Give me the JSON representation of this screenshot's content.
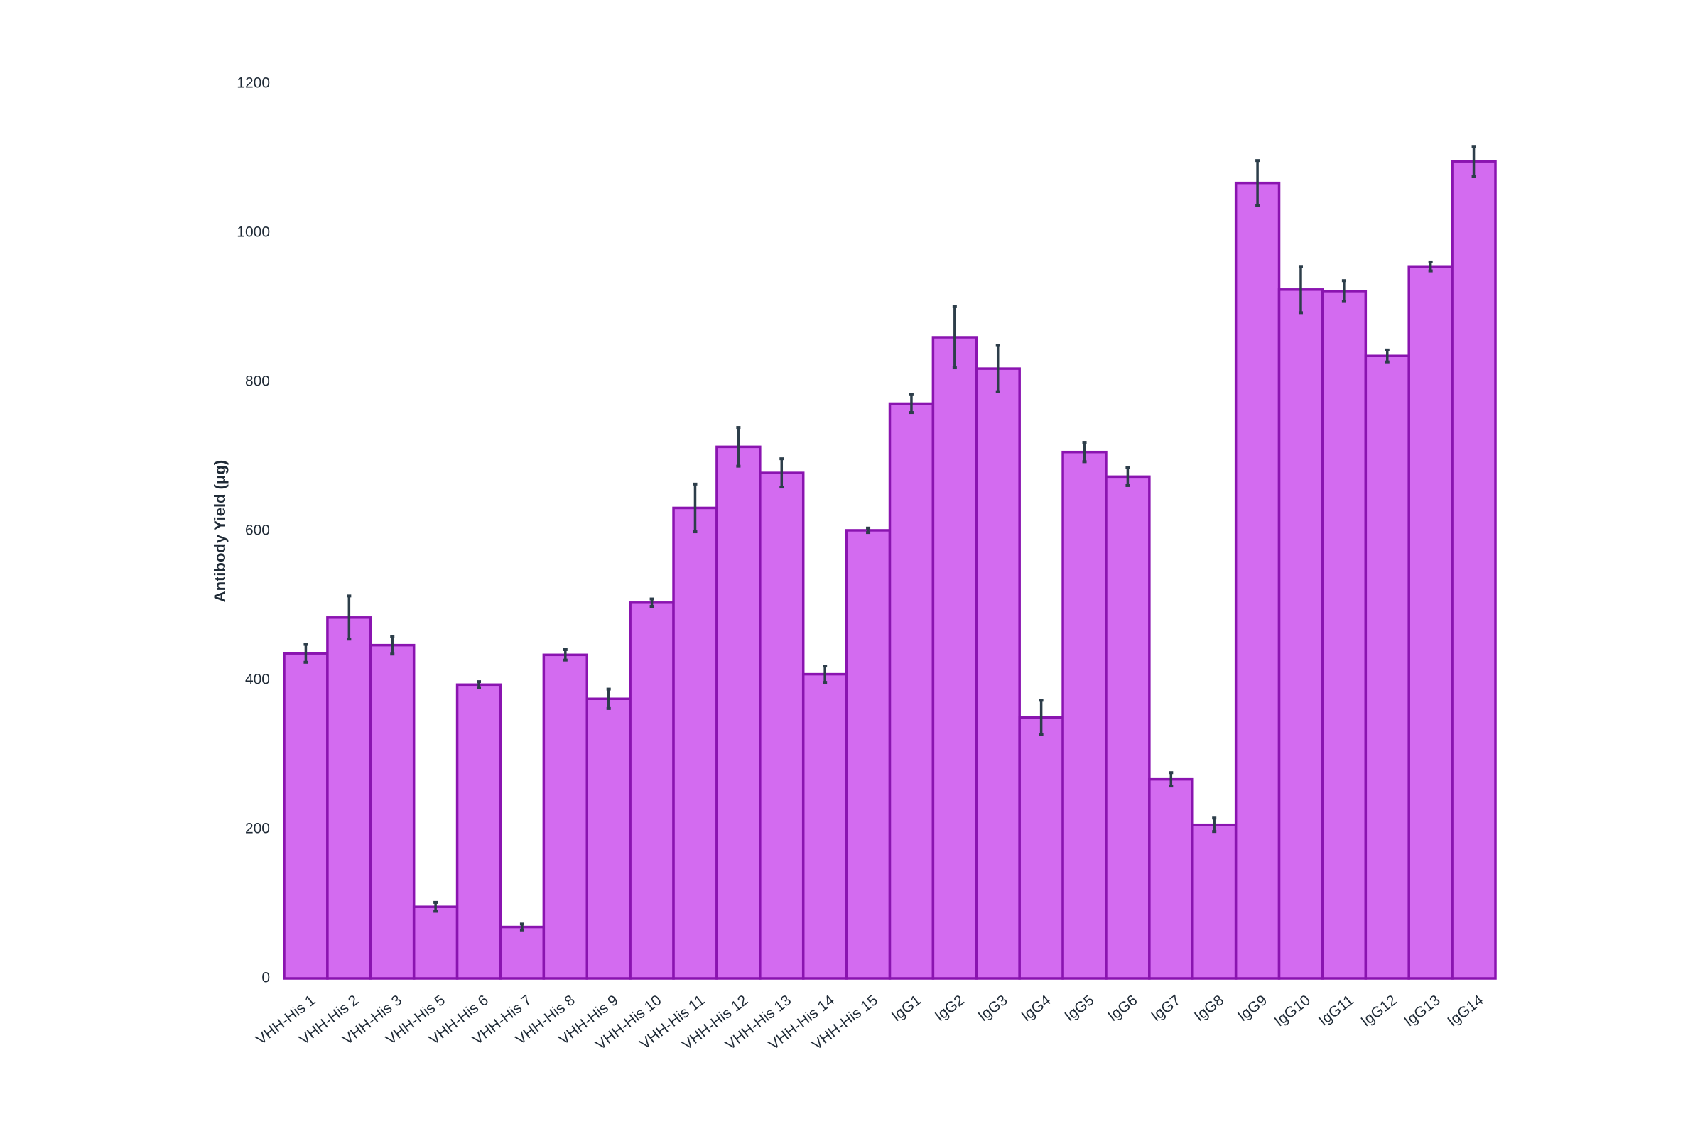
{
  "chart_data": {
    "type": "bar",
    "y_label": "Antibody Yield (μg)",
    "categories": [
      "VHH-His 1",
      "VHH-His 2",
      "VHH-His 3",
      "VHH-His 5",
      "VHH-His 6",
      "VHH-His 7",
      "VHH-His 8",
      "VHH-His 9",
      "VHH-His 10",
      "VHH-His 11",
      "VHH-His 12",
      "VHH-His 13",
      "VHH-His 14",
      "VHH-His 15",
      "IgG1",
      "IgG2",
      "IgG3",
      "IgG4",
      "IgG5",
      "IgG6",
      "IgG7",
      "IgG8",
      "IgG9",
      "IgG10",
      "IgG11",
      "IgG12",
      "IgG13",
      "IgG14"
    ],
    "values": [
      436,
      484,
      447,
      96,
      394,
      69,
      434,
      375,
      504,
      631,
      713,
      678,
      408,
      601,
      771,
      860,
      818,
      350,
      706,
      673,
      267,
      206,
      1067,
      924,
      922,
      835,
      955,
      1096
    ],
    "errors": [
      12,
      29,
      12,
      6,
      4,
      4,
      7,
      13,
      5,
      32,
      26,
      19,
      11,
      3,
      12,
      41,
      31,
      23,
      13,
      12,
      9,
      9,
      30,
      31,
      14,
      8,
      6,
      20
    ],
    "color": "#d36bf0",
    "edge_color": "#8a14b0",
    "error_color": "#2d3e4a",
    "ylim": [
      0,
      1200
    ],
    "yticks": [
      0,
      200,
      400,
      600,
      800,
      1000,
      1200
    ],
    "grid": false
  }
}
